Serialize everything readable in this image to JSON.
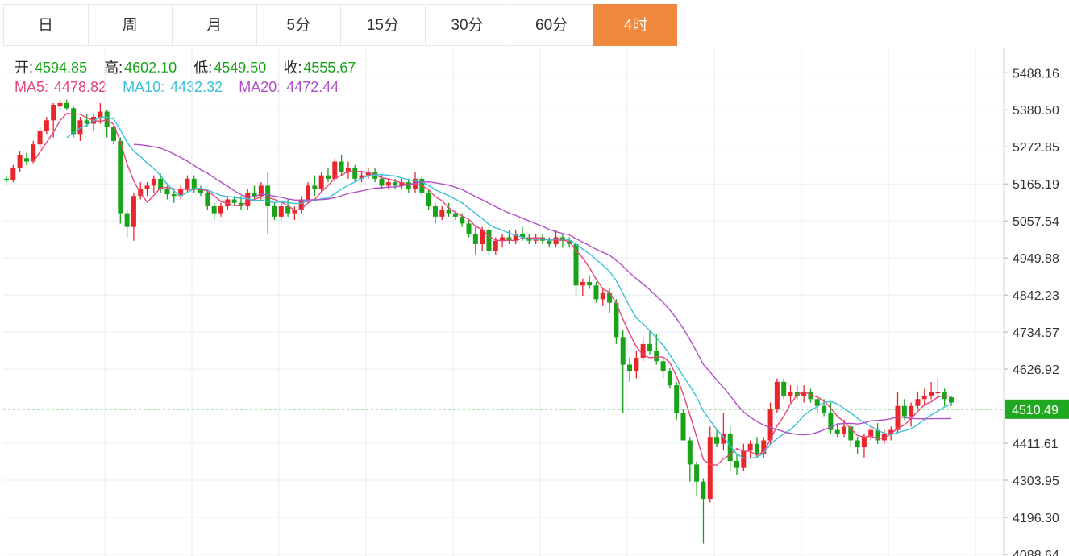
{
  "tabs": [
    {
      "label": "日",
      "active": false
    },
    {
      "label": "周",
      "active": false
    },
    {
      "label": "月",
      "active": false
    },
    {
      "label": "5分",
      "active": false
    },
    {
      "label": "15分",
      "active": false
    },
    {
      "label": "30分",
      "active": false
    },
    {
      "label": "60分",
      "active": false
    },
    {
      "label": "4时",
      "active": true
    }
  ],
  "ohlc": {
    "open_label": "开:",
    "open": "4594.85",
    "high_label": "高:",
    "high": "4602.10",
    "low_label": "低:",
    "low": "4549.50",
    "close_label": "收:",
    "close": "4555.67"
  },
  "ma": [
    {
      "label": "MA5:",
      "value": "4478.82",
      "color": "#e8457a"
    },
    {
      "label": "MA10:",
      "value": "4432.32",
      "color": "#3bc0d8"
    },
    {
      "label": "MA20:",
      "value": "4472.44",
      "color": "#b04fc6"
    }
  ],
  "colors": {
    "up": "#e8262b",
    "down": "#18a318",
    "grid": "#e8eef3",
    "price_line": "#21a821",
    "price_tag": "#21a821"
  },
  "chart_data": {
    "type": "candlestick",
    "y_ticks": [
      "5488.16",
      "5380.50",
      "5272.85",
      "5165.19",
      "5057.54",
      "4949.88",
      "4842.23",
      "4734.57",
      "4626.92",
      "4411.61",
      "4303.95",
      "4196.30",
      "4088.64"
    ],
    "ylim": [
      4088.64,
      5559.0
    ],
    "current_price": "4510.49",
    "candles": [
      [
        5180,
        5190,
        5170,
        5175
      ],
      [
        5175,
        5220,
        5170,
        5210
      ],
      [
        5210,
        5260,
        5200,
        5250
      ],
      [
        5240,
        5255,
        5220,
        5230
      ],
      [
        5230,
        5290,
        5225,
        5280
      ],
      [
        5280,
        5330,
        5270,
        5320
      ],
      [
        5320,
        5360,
        5310,
        5350
      ],
      [
        5350,
        5400,
        5300,
        5395
      ],
      [
        5390,
        5410,
        5380,
        5400
      ],
      [
        5400,
        5410,
        5380,
        5385
      ],
      [
        5385,
        5390,
        5300,
        5310
      ],
      [
        5310,
        5360,
        5290,
        5350
      ],
      [
        5350,
        5370,
        5330,
        5340
      ],
      [
        5340,
        5370,
        5320,
        5360
      ],
      [
        5355,
        5400,
        5340,
        5375
      ],
      [
        5375,
        5380,
        5300,
        5330
      ],
      [
        5330,
        5335,
        5280,
        5290
      ],
      [
        5290,
        5300,
        5050,
        5080
      ],
      [
        5080,
        5090,
        5010,
        5040
      ],
      [
        5040,
        5140,
        5000,
        5130
      ],
      [
        5130,
        5170,
        5120,
        5150
      ],
      [
        5150,
        5170,
        5130,
        5160
      ],
      [
        5160,
        5190,
        5140,
        5180
      ],
      [
        5180,
        5195,
        5140,
        5150
      ],
      [
        5150,
        5160,
        5120,
        5135
      ],
      [
        5135,
        5150,
        5110,
        5130
      ],
      [
        5130,
        5160,
        5120,
        5150
      ],
      [
        5150,
        5190,
        5140,
        5180
      ],
      [
        5180,
        5190,
        5140,
        5150
      ],
      [
        5150,
        5160,
        5130,
        5140
      ],
      [
        5140,
        5150,
        5090,
        5100
      ],
      [
        5100,
        5110,
        5060,
        5080
      ],
      [
        5080,
        5110,
        5070,
        5100
      ],
      [
        5100,
        5130,
        5090,
        5120
      ],
      [
        5120,
        5130,
        5100,
        5110
      ],
      [
        5110,
        5130,
        5090,
        5100
      ],
      [
        5100,
        5150,
        5090,
        5140
      ],
      [
        5140,
        5160,
        5120,
        5130
      ],
      [
        5130,
        5170,
        5120,
        5160
      ],
      [
        5160,
        5200,
        5020,
        5100
      ],
      [
        5100,
        5110,
        5060,
        5070
      ],
      [
        5070,
        5110,
        5060,
        5100
      ],
      [
        5100,
        5120,
        5070,
        5080
      ],
      [
        5080,
        5100,
        5060,
        5090
      ],
      [
        5090,
        5130,
        5080,
        5120
      ],
      [
        5120,
        5170,
        5110,
        5160
      ],
      [
        5160,
        5190,
        5130,
        5150
      ],
      [
        5150,
        5200,
        5140,
        5190
      ],
      [
        5190,
        5210,
        5170,
        5180
      ],
      [
        5180,
        5240,
        5170,
        5230
      ],
      [
        5230,
        5250,
        5190,
        5200
      ],
      [
        5200,
        5230,
        5180,
        5210
      ],
      [
        5210,
        5220,
        5170,
        5180
      ],
      [
        5180,
        5200,
        5170,
        5190
      ],
      [
        5190,
        5210,
        5180,
        5200
      ],
      [
        5200,
        5210,
        5170,
        5180
      ],
      [
        5180,
        5190,
        5150,
        5160
      ],
      [
        5160,
        5180,
        5150,
        5170
      ],
      [
        5170,
        5180,
        5150,
        5160
      ],
      [
        5160,
        5180,
        5150,
        5170
      ],
      [
        5170,
        5180,
        5140,
        5150
      ],
      [
        5150,
        5200,
        5140,
        5180
      ],
      [
        5180,
        5190,
        5130,
        5140
      ],
      [
        5140,
        5150,
        5090,
        5100
      ],
      [
        5100,
        5110,
        5050,
        5070
      ],
      [
        5070,
        5100,
        5060,
        5090
      ],
      [
        5090,
        5110,
        5070,
        5080
      ],
      [
        5080,
        5090,
        5060,
        5070
      ],
      [
        5070,
        5080,
        5040,
        5050
      ],
      [
        5050,
        5060,
        5010,
        5020
      ],
      [
        5020,
        5040,
        4960,
        4990
      ],
      [
        4990,
        5040,
        4970,
        5030
      ],
      [
        5030,
        5040,
        4960,
        4970
      ],
      [
        4970,
        5010,
        4960,
        5000
      ],
      [
        5000,
        5020,
        4980,
        5010
      ],
      [
        5010,
        5030,
        4990,
        5000
      ],
      [
        5000,
        5030,
        4990,
        5020
      ],
      [
        5020,
        5040,
        5000,
        5010
      ],
      [
        5010,
        5020,
        4990,
        5000
      ],
      [
        5000,
        5020,
        4990,
        5010
      ],
      [
        5010,
        5020,
        4990,
        5000
      ],
      [
        5000,
        5010,
        4980,
        4990
      ],
      [
        4990,
        5030,
        4980,
        5010
      ],
      [
        5010,
        5020,
        4980,
        5000
      ],
      [
        5000,
        5010,
        4980,
        4990
      ],
      [
        4990,
        5000,
        4840,
        4870
      ],
      [
        4870,
        4890,
        4840,
        4880
      ],
      [
        4880,
        4900,
        4860,
        4870
      ],
      [
        4870,
        4880,
        4820,
        4830
      ],
      [
        4830,
        4860,
        4810,
        4850
      ],
      [
        4850,
        4860,
        4790,
        4820
      ],
      [
        4820,
        4830,
        4700,
        4720
      ],
      [
        4720,
        4740,
        4500,
        4640
      ],
      [
        4640,
        4660,
        4590,
        4620
      ],
      [
        4620,
        4680,
        4600,
        4660
      ],
      [
        4660,
        4720,
        4650,
        4700
      ],
      [
        4700,
        4740,
        4670,
        4680
      ],
      [
        4680,
        4730,
        4640,
        4650
      ],
      [
        4650,
        4660,
        4600,
        4620
      ],
      [
        4620,
        4630,
        4570,
        4580
      ],
      [
        4580,
        4590,
        4480,
        4500
      ],
      [
        4500,
        4510,
        4420,
        4420
      ],
      [
        4420,
        4430,
        4300,
        4350
      ],
      [
        4350,
        4360,
        4260,
        4300
      ],
      [
        4300,
        4310,
        4120,
        4250
      ],
      [
        4250,
        4460,
        4240,
        4430
      ],
      [
        4430,
        4450,
        4400,
        4410
      ],
      [
        4410,
        4500,
        4390,
        4440
      ],
      [
        4440,
        4460,
        4330,
        4360
      ],
      [
        4360,
        4380,
        4320,
        4340
      ],
      [
        4340,
        4410,
        4330,
        4390
      ],
      [
        4390,
        4420,
        4370,
        4410
      ],
      [
        4410,
        4430,
        4370,
        4380
      ],
      [
        4380,
        4430,
        4370,
        4420
      ],
      [
        4420,
        4530,
        4410,
        4510
      ],
      [
        4510,
        4600,
        4500,
        4590
      ],
      [
        4590,
        4600,
        4540,
        4550
      ],
      [
        4550,
        4580,
        4530,
        4560
      ],
      [
        4560,
        4580,
        4540,
        4550
      ],
      [
        4550,
        4580,
        4530,
        4560
      ],
      [
        4560,
        4570,
        4530,
        4540
      ],
      [
        4540,
        4550,
        4500,
        4520
      ],
      [
        4520,
        4540,
        4490,
        4500
      ],
      [
        4500,
        4530,
        4440,
        4450
      ],
      [
        4450,
        4470,
        4430,
        4440
      ],
      [
        4440,
        4480,
        4430,
        4460
      ],
      [
        4460,
        4470,
        4400,
        4420
      ],
      [
        4420,
        4430,
        4380,
        4400
      ],
      [
        4400,
        4440,
        4370,
        4430
      ],
      [
        4430,
        4460,
        4420,
        4450
      ],
      [
        4450,
        4470,
        4410,
        4420
      ],
      [
        4420,
        4450,
        4410,
        4440
      ],
      [
        4440,
        4460,
        4420,
        4450
      ],
      [
        4450,
        4560,
        4440,
        4520
      ],
      [
        4520,
        4540,
        4480,
        4490
      ],
      [
        4490,
        4530,
        4460,
        4520
      ],
      [
        4520,
        4560,
        4510,
        4540
      ],
      [
        4540,
        4570,
        4520,
        4550
      ],
      [
        4550,
        4590,
        4540,
        4560
      ],
      [
        4560,
        4600,
        4540,
        4560
      ],
      [
        4560,
        4570,
        4520,
        4540
      ],
      [
        4545,
        4550,
        4520,
        4530
      ]
    ]
  }
}
